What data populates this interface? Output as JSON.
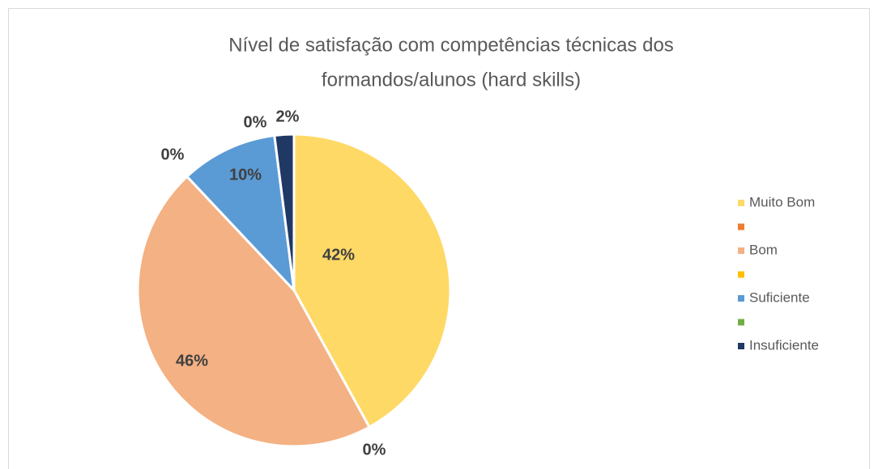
{
  "chart_data": {
    "type": "pie",
    "title": [
      "Nível de satisfação com competências técnicas dos",
      "formandos/alunos (hard skills)"
    ],
    "categories": [
      "Muito Bom",
      null,
      "Bom",
      null,
      "Suficiente",
      null,
      "Insuficiente"
    ],
    "values": [
      42,
      0,
      46,
      0,
      10,
      0,
      2
    ],
    "value_labels": [
      "42%",
      "0%",
      "46%",
      "0%",
      "10%",
      "0%",
      "2%"
    ],
    "colors": [
      "#FFD966",
      "#ED7D31",
      "#F4B183",
      "#FFC000",
      "#5B9BD5",
      "#70AD47",
      "#203864"
    ],
    "legend": "right"
  }
}
